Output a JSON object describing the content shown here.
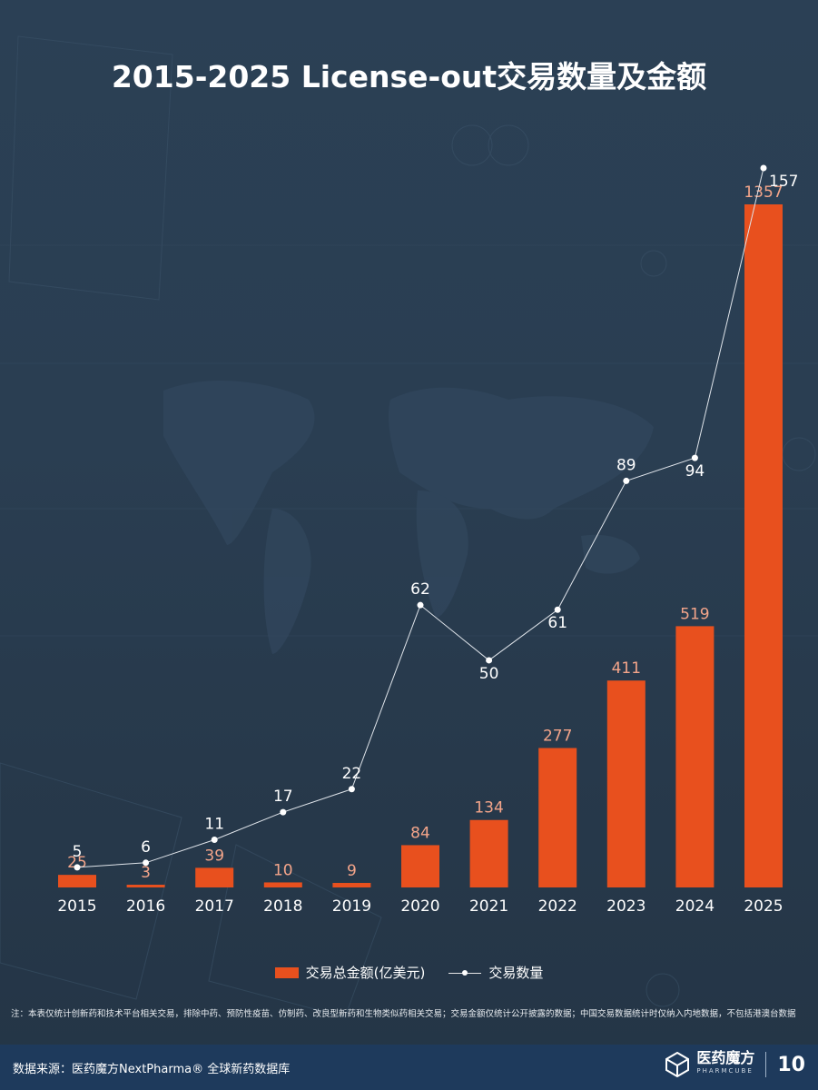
{
  "title": "2015-2025 License-out交易数量及金额",
  "colors": {
    "bar": "#e8501e",
    "bar_label": "#f4a58a",
    "line": "#dfe4ea",
    "background": "#2a3e52"
  },
  "chart_data": {
    "type": "bar",
    "title": "2015-2025 License-out交易数量及金额",
    "categories": [
      "2015",
      "2016",
      "2017",
      "2018",
      "2019",
      "2020",
      "2021",
      "2022",
      "2023",
      "2024",
      "2025"
    ],
    "series": [
      {
        "name": "交易总金额(亿美元)",
        "type": "bar",
        "values": [
          25,
          3,
          39,
          10,
          9,
          84,
          134,
          277,
          411,
          519,
          1357
        ]
      },
      {
        "name": "交易数量",
        "type": "line",
        "values": [
          5,
          6,
          11,
          17,
          22,
          62,
          50,
          61,
          89,
          94,
          157
        ]
      }
    ],
    "grid": false,
    "legend_position": "bottom"
  },
  "legend": {
    "bar_label": "交易总金额(亿美元)",
    "line_label": "交易数量"
  },
  "note": "注：本表仅统计创新药和技术平台相关交易，排除中药、预防性疫苗、仿制药、改良型新药和生物类似药相关交易；交易金额仅统计公开披露的数据；中国交易数据统计时仅纳入内地数据，不包括港澳台数据",
  "footer": {
    "source": "数据来源：医药魔方NextPharma® 全球新药数据库",
    "brand_cn": "医药魔方",
    "brand_en": "PHARMCUBE",
    "anniversary": "10"
  }
}
